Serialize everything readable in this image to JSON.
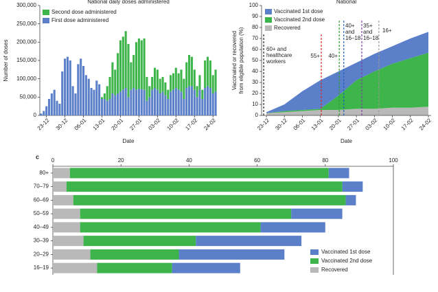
{
  "chart_data": [
    {
      "type": "bar",
      "title": "National daily doses administered",
      "xlabel": "Date",
      "ylabel": "Number of doses",
      "categories": [
        null,
        null,
        "23-12",
        null,
        null,
        null,
        null,
        null,
        null,
        "30-12",
        null,
        null,
        null,
        null,
        null,
        null,
        "06-01",
        null,
        null,
        null,
        null,
        null,
        null,
        "13-01",
        null,
        null,
        null,
        null,
        null,
        null,
        "20-01",
        null,
        null,
        null,
        null,
        null,
        null,
        "27-01",
        null,
        null,
        null,
        null,
        null,
        null,
        "03-02",
        null,
        null,
        null,
        null,
        null,
        null,
        "10-02",
        null,
        null,
        null,
        null,
        null,
        null,
        "17-02",
        null,
        null,
        null,
        null,
        null,
        null,
        "24-02",
        null
      ],
      "series": [
        {
          "name": "Second dose administered",
          "color": "#3db54a",
          "values": [
            0,
            0,
            0,
            0,
            0,
            0,
            0,
            0,
            0,
            0,
            0,
            0,
            0,
            0,
            0,
            0,
            0,
            0,
            0,
            0,
            0,
            0,
            0,
            5000,
            15000,
            40000,
            60000,
            85000,
            70000,
            110000,
            140000,
            145000,
            155000,
            145000,
            75000,
            90000,
            130000,
            138000,
            133000,
            140000,
            65000,
            30000,
            35000,
            55000,
            55000,
            40000,
            40000,
            35000,
            25000,
            45000,
            45000,
            55000,
            45000,
            60000,
            55000,
            70000,
            85000,
            80000,
            55000,
            30000,
            40000,
            25000,
            75000,
            80000,
            75000,
            50000,
            60000
          ]
        },
        {
          "name": "First dose administered",
          "color": "#5b7fc9",
          "values": [
            5000,
            12000,
            25000,
            45000,
            60000,
            70000,
            40000,
            32000,
            120000,
            155000,
            160000,
            150000,
            80000,
            60000,
            140000,
            155000,
            135000,
            110000,
            100000,
            75000,
            70000,
            95000,
            85000,
            45000,
            45000,
            40000,
            45000,
            60000,
            55000,
            60000,
            65000,
            70000,
            75000,
            50000,
            70000,
            75000,
            70000,
            72000,
            72000,
            70000,
            40000,
            50000,
            70000,
            75000,
            70000,
            60000,
            65000,
            55000,
            45000,
            65000,
            70000,
            75000,
            70000,
            65000,
            45000,
            75000,
            80000,
            80000,
            70000,
            50000,
            70000,
            45000,
            75000,
            80000,
            75000,
            60000,
            65000
          ]
        }
      ],
      "ylim": [
        0,
        300000
      ],
      "yticks": [
        0,
        {
          "value": 50000,
          "label": "50,000"
        },
        {
          "value": 100000,
          "label": "100,000"
        },
        {
          "value": 150000,
          "label": "150,000"
        },
        {
          "value": 200000,
          "label": "200,000"
        },
        {
          "value": 250000,
          "label": "250,000"
        },
        {
          "value": 300000,
          "label": "300,000"
        }
      ],
      "grid": false,
      "legend": "upper left"
    },
    {
      "type": "area",
      "title": "National",
      "xlabel": "Date",
      "ylabel": [
        "Vaccinated or recovered",
        "from eligible population (%)"
      ],
      "categories": [
        "23-12",
        "30-12",
        "06-01",
        "13-01",
        "20-01",
        "27-01",
        "03-02",
        "10-02",
        "17-02",
        "24-02"
      ],
      "series": [
        {
          "name": "Vaccinated 1st dose",
          "color": "#5b7fc9",
          "values": [
            1,
            6,
            17,
            26,
            22,
            16,
            16,
            16,
            18,
            19
          ]
        },
        {
          "name": "Vaccinated 2nd dose",
          "color": "#3db54a",
          "values": [
            0,
            1,
            1,
            1,
            13,
            26,
            34,
            40,
            45,
            49
          ]
        },
        {
          "name": "Recovered",
          "color": "#b9b9b9",
          "values": [
            2,
            3,
            4,
            5,
            5,
            6,
            6,
            7,
            7,
            8
          ]
        }
      ],
      "ylim": [
        0,
        100
      ],
      "yticks": [
        0,
        10,
        20,
        30,
        40,
        50,
        60,
        70,
        80,
        90,
        100
      ],
      "annotations": [
        {
          "text": [
            "60+ and",
            "healthcare",
            "workers"
          ],
          "color": "#222222"
        },
        {
          "text": [
            "55+"
          ],
          "color": "#d62728"
        },
        {
          "text": [
            "40+"
          ],
          "color": "#2ca02c"
        },
        {
          "text": [
            "40+",
            "and",
            "16–18"
          ],
          "color": "#1f5fbf"
        },
        {
          "text": [
            "35+",
            "and",
            "16–18"
          ],
          "color": "#7b3f9e"
        },
        {
          "text": [
            "16+"
          ],
          "color": "#999999"
        }
      ],
      "grid": false,
      "legend": "upper left"
    },
    {
      "type": "barh",
      "panel": "c",
      "categories": [
        "80+",
        "70–79",
        "60–69",
        "50–59",
        "40–49",
        "30–39",
        "20–29",
        "16–19"
      ],
      "series": [
        {
          "name": "Vaccinated 1st dose",
          "color": "#5b7fc9",
          "values": [
            6,
            6,
            3,
            15,
            19,
            31,
            31,
            20
          ]
        },
        {
          "name": "Vaccinated 2nd dose",
          "color": "#3db54a",
          "values": [
            76,
            81,
            80,
            62,
            53,
            33,
            26,
            22
          ]
        },
        {
          "name": "Recovered",
          "color": "#b9b9b9",
          "values": [
            5,
            4,
            6,
            8,
            8,
            9,
            11,
            13
          ]
        }
      ],
      "xlim": [
        0,
        100
      ],
      "xticks": [
        0,
        20,
        40,
        60,
        80,
        100
      ],
      "grid": false,
      "legend": "lower right"
    }
  ]
}
